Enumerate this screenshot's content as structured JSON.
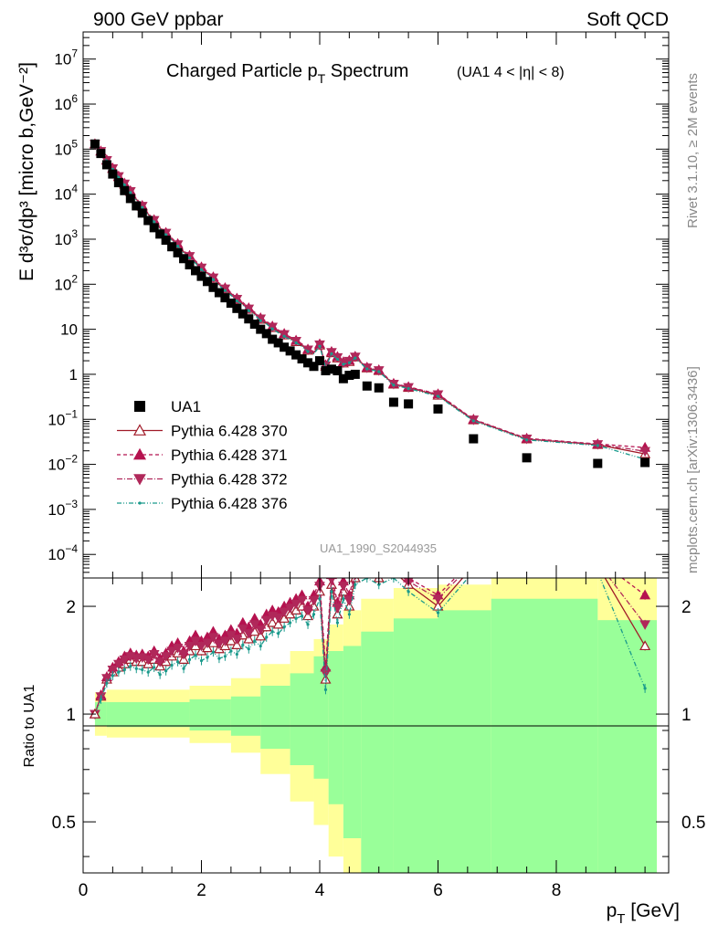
{
  "header": {
    "left": "900 GeV ppbar",
    "right": "Soft QCD",
    "title_main": "Charged Particle p",
    "title_sub": "T",
    "title_tail": " Spectrum",
    "title_cut": "(UA1   4 < |η| < 8)",
    "analysis_id": "UA1_1990_S2044935",
    "side_right_top": "Rivet 3.1.10, ≥ 2M events",
    "side_right_bottom": "mcplots.cern.ch [arXiv:1306.3436]"
  },
  "axes": {
    "ylabel_main": "E d³σ/dp³ [micro b,GeV⁻²]",
    "ylabel_ratio": "Ratio to UA1",
    "xlabel": "p",
    "xlabel_sub": "T",
    "xlabel_tail": " [GeV]"
  },
  "chart_data": {
    "type": "scatter",
    "x_range": [
      0,
      9.9
    ],
    "main_y_range": [
      3e-05,
      40000000.0
    ],
    "main_y_scale": "log",
    "ratio_y_range": [
      0.36,
      2.4
    ],
    "ratio_y_scale": "log",
    "main_y_ticks": [
      {
        "v": 10000000.0,
        "b": "10",
        "e": "7"
      },
      {
        "v": 1000000.0,
        "b": "10",
        "e": "6"
      },
      {
        "v": 100000.0,
        "b": "10",
        "e": "5"
      },
      {
        "v": 10000.0,
        "b": "10",
        "e": "4"
      },
      {
        "v": 1000.0,
        "b": "10",
        "e": "3"
      },
      {
        "v": 100,
        "b": "10",
        "e": "2"
      },
      {
        "v": 10,
        "b": "10",
        "e": ""
      },
      {
        "v": 1,
        "b": "1",
        "e": ""
      },
      {
        "v": 0.1,
        "b": "10",
        "e": "−1"
      },
      {
        "v": 0.01,
        "b": "10",
        "e": "−2"
      },
      {
        "v": 0.001,
        "b": "10",
        "e": "−3"
      },
      {
        "v": 0.0001,
        "b": "10",
        "e": "−4"
      }
    ],
    "ratio_y_ticks": [
      {
        "v": 2,
        "label": "2"
      },
      {
        "v": 1,
        "label": "1"
      },
      {
        "v": 0.5,
        "label": "0.5"
      }
    ],
    "x_ticks": [
      0,
      2,
      4,
      6,
      8
    ],
    "x_tick_labels": [
      "0",
      "2",
      "4",
      "6",
      "8"
    ],
    "legend_position": "center-left",
    "pt": [
      0.2,
      0.3,
      0.4,
      0.5,
      0.6,
      0.7,
      0.8,
      0.9,
      1.0,
      1.1,
      1.2,
      1.3,
      1.4,
      1.5,
      1.6,
      1.7,
      1.8,
      1.9,
      2.0,
      2.1,
      2.2,
      2.3,
      2.4,
      2.5,
      2.6,
      2.7,
      2.8,
      2.9,
      3.0,
      3.1,
      3.2,
      3.3,
      3.4,
      3.5,
      3.6,
      3.7,
      3.8,
      3.9,
      4.0,
      4.1,
      4.2,
      4.3,
      4.4,
      4.5,
      4.6,
      4.8,
      5.0,
      5.25,
      5.5,
      6.0,
      6.6,
      7.5,
      8.7,
      9.5
    ],
    "ua1": [
      130000,
      80000,
      45000,
      28000,
      18000,
      12000,
      8000,
      5500,
      3800,
      2600,
      1800,
      1300,
      950,
      680,
      500,
      370,
      270,
      200,
      150,
      115,
      85,
      65,
      50,
      38,
      29,
      22,
      17,
      13,
      10,
      8,
      6,
      5,
      4,
      3.3,
      2.7,
      2.2,
      1.8,
      1.5,
      2.0,
      1.2,
      1.3,
      1.2,
      0.8,
      0.95,
      1.0,
      0.55,
      0.5,
      0.24,
      0.22,
      0.17,
      0.037,
      0.014,
      0.0105,
      0.011
    ],
    "ratio_band_inner": [
      {
        "x0": 0.2,
        "x1": 0.4,
        "lo": 0.93,
        "hi": 1.08
      },
      {
        "x0": 0.4,
        "x1": 1.8,
        "lo": 0.92,
        "hi": 1.08
      },
      {
        "x0": 1.8,
        "x1": 2.5,
        "lo": 0.9,
        "hi": 1.1
      },
      {
        "x0": 2.5,
        "x1": 3.0,
        "lo": 0.87,
        "hi": 1.12
      },
      {
        "x0": 3.0,
        "x1": 3.5,
        "lo": 0.8,
        "hi": 1.2
      },
      {
        "x0": 3.5,
        "x1": 3.9,
        "lo": 0.72,
        "hi": 1.3
      },
      {
        "x0": 3.9,
        "x1": 4.15,
        "lo": 0.66,
        "hi": 1.45
      },
      {
        "x0": 4.15,
        "x1": 4.4,
        "lo": 0.56,
        "hi": 1.5
      },
      {
        "x0": 4.4,
        "x1": 4.7,
        "lo": 0.45,
        "hi": 1.55
      },
      {
        "x0": 4.7,
        "x1": 5.25,
        "lo": 0.36,
        "hi": 1.7
      },
      {
        "x0": 5.25,
        "x1": 6.0,
        "lo": 0.36,
        "hi": 1.85
      },
      {
        "x0": 6.0,
        "x1": 6.9,
        "lo": 0.36,
        "hi": 1.95
      },
      {
        "x0": 6.9,
        "x1": 8.7,
        "lo": 0.36,
        "hi": 2.1
      },
      {
        "x0": 8.7,
        "x1": 9.7,
        "lo": 0.36,
        "hi": 1.83
      }
    ],
    "ratio_band_outer": [
      {
        "x0": 0.2,
        "x1": 0.4,
        "lo": 0.87,
        "hi": 1.15
      },
      {
        "x0": 0.4,
        "x1": 1.8,
        "lo": 0.86,
        "hi": 1.17
      },
      {
        "x0": 1.8,
        "x1": 2.5,
        "lo": 0.83,
        "hi": 1.2
      },
      {
        "x0": 2.5,
        "x1": 3.0,
        "lo": 0.78,
        "hi": 1.26
      },
      {
        "x0": 3.0,
        "x1": 3.5,
        "lo": 0.68,
        "hi": 1.38
      },
      {
        "x0": 3.5,
        "x1": 3.9,
        "lo": 0.57,
        "hi": 1.5
      },
      {
        "x0": 3.9,
        "x1": 4.15,
        "lo": 0.49,
        "hi": 1.62
      },
      {
        "x0": 4.15,
        "x1": 4.4,
        "lo": 0.4,
        "hi": 1.78
      },
      {
        "x0": 4.4,
        "x1": 4.7,
        "lo": 0.36,
        "hi": 1.95
      },
      {
        "x0": 4.7,
        "x1": 5.25,
        "lo": 0.36,
        "hi": 2.1
      },
      {
        "x0": 5.25,
        "x1": 6.0,
        "lo": 0.36,
        "hi": 2.25
      },
      {
        "x0": 6.0,
        "x1": 6.9,
        "lo": 0.36,
        "hi": 2.3
      },
      {
        "x0": 6.9,
        "x1": 8.7,
        "lo": 0.36,
        "hi": 2.4
      },
      {
        "x0": 8.7,
        "x1": 9.7,
        "lo": 0.36,
        "hi": 2.4
      }
    ],
    "series": [
      {
        "name": "Pythia 6.428 370",
        "color": "#a01a28",
        "dash": "",
        "marker": "triangle-up-open",
        "ratio": [
          1.0,
          1.12,
          1.25,
          1.31,
          1.35,
          1.38,
          1.42,
          1.4,
          1.4,
          1.38,
          1.42,
          1.36,
          1.4,
          1.45,
          1.48,
          1.42,
          1.5,
          1.55,
          1.5,
          1.53,
          1.58,
          1.52,
          1.55,
          1.6,
          1.56,
          1.66,
          1.62,
          1.7,
          1.65,
          1.75,
          1.8,
          1.78,
          1.85,
          1.9,
          1.95,
          2.0,
          1.88,
          2.0,
          2.2,
          1.25,
          2.3,
          1.9,
          2.2,
          2.0,
          2.4,
          2.5,
          2.4,
          2.5,
          2.3,
          2.0,
          2.6,
          2.6,
          2.6,
          1.55
        ]
      },
      {
        "name": "Pythia 6.428 371",
        "color": "#b5124f",
        "dash": "4,3",
        "marker": "triangle-up-filled",
        "ratio": [
          1.0,
          1.13,
          1.27,
          1.35,
          1.4,
          1.45,
          1.48,
          1.46,
          1.47,
          1.45,
          1.5,
          1.43,
          1.48,
          1.55,
          1.58,
          1.5,
          1.6,
          1.66,
          1.6,
          1.64,
          1.7,
          1.62,
          1.66,
          1.72,
          1.68,
          1.8,
          1.75,
          1.85,
          1.78,
          1.9,
          1.95,
          1.93,
          2.0,
          2.05,
          2.1,
          2.15,
          2.0,
          2.15,
          2.35,
          1.35,
          2.45,
          2.05,
          2.35,
          2.15,
          2.5,
          2.6,
          2.5,
          2.6,
          2.4,
          2.15,
          2.7,
          2.7,
          2.7,
          2.15
        ]
      },
      {
        "name": "Pythia 6.428 372",
        "color": "#b0285a",
        "dash": "6,2,1,2",
        "marker": "triangle-down-filled",
        "ratio": [
          1.0,
          1.12,
          1.26,
          1.33,
          1.38,
          1.42,
          1.45,
          1.43,
          1.44,
          1.42,
          1.47,
          1.4,
          1.45,
          1.5,
          1.53,
          1.47,
          1.55,
          1.6,
          1.55,
          1.58,
          1.64,
          1.57,
          1.6,
          1.66,
          1.62,
          1.73,
          1.68,
          1.78,
          1.72,
          1.83,
          1.88,
          1.86,
          1.93,
          1.98,
          2.03,
          2.08,
          1.95,
          2.08,
          2.28,
          1.3,
          2.38,
          1.98,
          2.28,
          2.08,
          2.45,
          2.55,
          2.45,
          2.55,
          2.35,
          2.1,
          2.65,
          2.65,
          2.65,
          1.78
        ]
      },
      {
        "name": "Pythia 6.428 376",
        "color": "#1a9a8c",
        "dash": "5,2,1,2,1,2",
        "marker": "dot",
        "ratio": [
          1.0,
          1.1,
          1.22,
          1.28,
          1.31,
          1.33,
          1.36,
          1.34,
          1.33,
          1.31,
          1.35,
          1.29,
          1.32,
          1.37,
          1.4,
          1.34,
          1.42,
          1.46,
          1.41,
          1.44,
          1.49,
          1.43,
          1.45,
          1.5,
          1.47,
          1.56,
          1.52,
          1.6,
          1.55,
          1.64,
          1.7,
          1.68,
          1.75,
          1.8,
          1.85,
          1.88,
          1.78,
          1.9,
          2.1,
          1.17,
          2.2,
          1.8,
          2.1,
          1.9,
          2.3,
          2.4,
          2.3,
          2.4,
          2.2,
          1.92,
          2.5,
          2.5,
          2.5,
          1.18
        ]
      }
    ],
    "legend_data_label": "UA1"
  }
}
